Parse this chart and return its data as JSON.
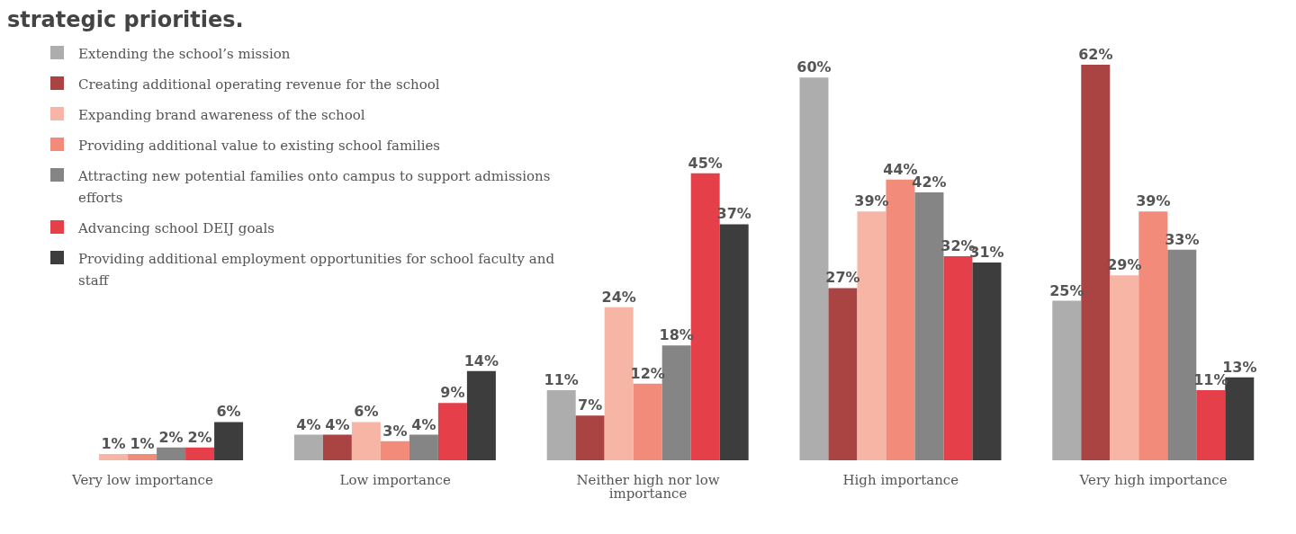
{
  "chart_data": {
    "type": "bar",
    "title": "strategic priorities.",
    "categories": [
      "Very low importance",
      "Low importance",
      "Neither high nor low importance",
      "High importance",
      "Very high importance"
    ],
    "legend": "top left",
    "grid": false,
    "series": [
      {
        "name": "Extending the school’s mission",
        "color": "#adadad",
        "values": [
          0,
          4,
          11,
          60,
          25
        ],
        "value_labels": [
          null,
          "4%",
          "11%",
          "60%",
          "25%"
        ]
      },
      {
        "name": "Creating additional operating revenue for the school",
        "color": "#a94442",
        "values": [
          0,
          4,
          7,
          27,
          62
        ],
        "value_labels": [
          null,
          "4%",
          "7%",
          "27%",
          "62%"
        ]
      },
      {
        "name": "Expanding brand awareness of the school",
        "color": "#f7b5a5",
        "values": [
          1,
          6,
          24,
          39,
          29
        ],
        "value_labels": [
          "1%",
          "6%",
          "24%",
          "39%",
          "29%"
        ]
      },
      {
        "name": "Providing additional value to existing school families",
        "color": "#f28b7a",
        "values": [
          1,
          3,
          12,
          44,
          39
        ],
        "value_labels": [
          "1%",
          "3%",
          "12%",
          "44%",
          "39%"
        ]
      },
      {
        "name": "Attracting new potential families onto campus to support admissions efforts",
        "color": "#858585",
        "values": [
          2,
          4,
          18,
          42,
          33
        ],
        "value_labels": [
          "2%",
          "4%",
          "18%",
          "42%",
          "33%"
        ]
      },
      {
        "name": "Advancing school DEIJ goals",
        "color": "#e5404a",
        "values": [
          2,
          9,
          45,
          32,
          11
        ],
        "value_labels": [
          "2%",
          "9%",
          "45%",
          "32%",
          "11%"
        ]
      },
      {
        "name": "Providing additional employment opportunities for school faculty and staff",
        "color": "#3d3d3d",
        "values": [
          6,
          14,
          37,
          31,
          13
        ],
        "value_labels": [
          "6%",
          "14%",
          "37%",
          "31%",
          "13%"
        ]
      }
    ]
  }
}
